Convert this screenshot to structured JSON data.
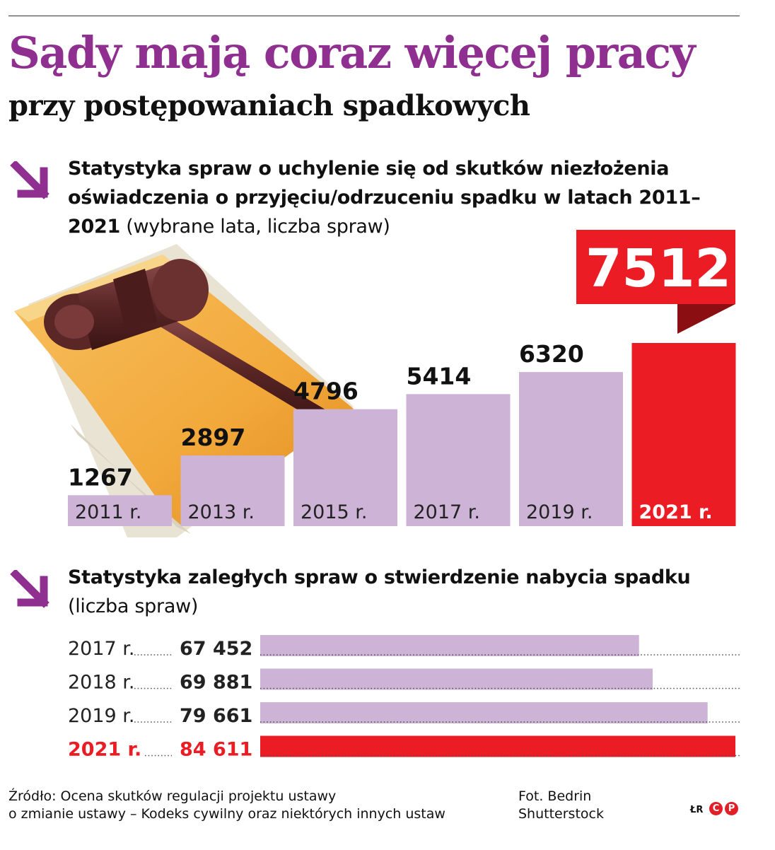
{
  "header": {
    "title": "Sądy mają coraz więcej pracy",
    "subtitle": "przy postępowaniach spadkowych"
  },
  "section1": {
    "heading_bold": "Statystyka spraw o uchylenie się od skutków niezłożenia oświadczenia o przyjęciu/odrzuceniu spadku w latach 2011–2021",
    "heading_normal": "(wybrane lata, liczba spraw)",
    "highlight_value": "7512"
  },
  "section2": {
    "heading_bold": "Statystyka zaległych spraw o stwierdzenie nabycia spadku",
    "heading_normal": "(liczba spraw)"
  },
  "chart_data": [
    {
      "type": "bar",
      "orientation": "vertical",
      "categories": [
        "2011 r.",
        "2013 r.",
        "2015 r.",
        "2017 r.",
        "2019 r.",
        "2021 r."
      ],
      "values": [
        1267,
        2897,
        4796,
        5414,
        6320,
        7512
      ],
      "value_labels": [
        "1267",
        "2897",
        "4796",
        "5414",
        "6320",
        "7512"
      ],
      "colors": [
        "#cdb3d6",
        "#cdb3d6",
        "#cdb3d6",
        "#cdb3d6",
        "#cdb3d6",
        "#ec1c24"
      ]
    },
    {
      "type": "bar",
      "orientation": "horizontal",
      "categories": [
        "2017 r.",
        "2018 r.",
        "2019 r.",
        "2021 r."
      ],
      "values": [
        67452,
        69881,
        79661,
        84611
      ],
      "value_labels": [
        "67 452",
        "69 881",
        "79 661",
        "84 611"
      ],
      "colors": [
        "#cdb3d6",
        "#cdb3d6",
        "#cdb3d6",
        "#ec1c24"
      ]
    }
  ],
  "footer": {
    "source_line1": "Źródło: Ocena skutków regulacji projektu ustawy",
    "source_line2": "o zmianie ustawy – Kodeks cywilny oraz niektórych innych ustaw",
    "photo_line1": "Fot. Bedrin",
    "photo_line2": "Shutterstock",
    "initials": "ŁR",
    "badge1": "C",
    "badge2": "P"
  },
  "colors": {
    "purple_accent": "#8f2f8f",
    "bar_purple": "#cdb3d6",
    "bar_red": "#ec1c24",
    "dark_red": "#8b0f12"
  }
}
